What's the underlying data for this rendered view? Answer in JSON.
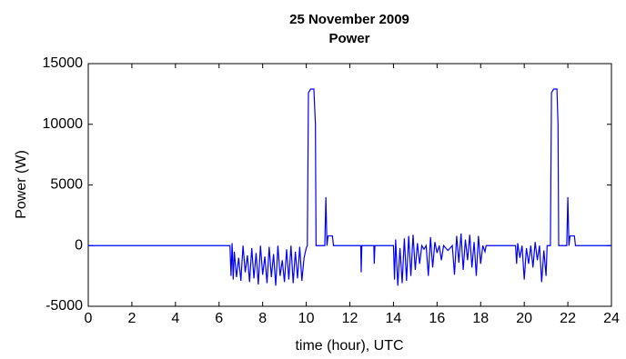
{
  "chart_data": {
    "type": "line",
    "title": "25 November 2009",
    "subtitle": "Power",
    "xlabel": "time (hour), UTC",
    "ylabel": "Power (W)",
    "xlim": [
      0,
      24
    ],
    "xticks": [
      0,
      2,
      4,
      6,
      8,
      10,
      12,
      14,
      16,
      18,
      20,
      22,
      24
    ],
    "ylim": [
      -5000,
      15000
    ],
    "yticks": [
      -5000,
      0,
      5000,
      10000,
      15000
    ],
    "grid": false,
    "series": [
      {
        "color": "#0000ff",
        "x": [
          0,
          6.5,
          6.55,
          6.6,
          6.65,
          6.7,
          6.8,
          6.9,
          7.0,
          7.1,
          7.2,
          7.3,
          7.4,
          7.5,
          7.6,
          7.7,
          7.8,
          7.9,
          8.0,
          8.1,
          8.2,
          8.3,
          8.4,
          8.5,
          8.6,
          8.7,
          8.8,
          8.9,
          9.0,
          9.1,
          9.2,
          9.3,
          9.4,
          9.5,
          9.6,
          9.7,
          9.8,
          9.9,
          10.0,
          10.05,
          10.1,
          10.2,
          10.35,
          10.42,
          10.45,
          10.85,
          10.9,
          10.95,
          11.0,
          11.2,
          11.25,
          12.5,
          12.52,
          12.55,
          13.1,
          13.12,
          13.15,
          14.0,
          14.05,
          14.1,
          14.2,
          14.3,
          14.4,
          14.5,
          14.6,
          14.7,
          14.8,
          14.9,
          15.0,
          15.1,
          15.2,
          15.3,
          15.4,
          15.5,
          15.6,
          15.7,
          15.8,
          15.9,
          16.0,
          16.1,
          16.2,
          16.3,
          16.5,
          16.7,
          16.8,
          16.9,
          17.0,
          17.1,
          17.2,
          17.3,
          17.4,
          17.5,
          17.6,
          17.7,
          17.8,
          17.9,
          18.0,
          18.1,
          18.2,
          18.25,
          19.6,
          19.65,
          19.7,
          19.8,
          19.9,
          20.0,
          20.1,
          20.2,
          20.3,
          20.4,
          20.5,
          20.6,
          20.7,
          20.8,
          20.9,
          21.0,
          21.05,
          21.2,
          21.25,
          21.35,
          21.5,
          21.55,
          21.58,
          21.95,
          22.0,
          22.05,
          22.1,
          22.3,
          22.35,
          24
        ],
        "values": [
          0,
          0,
          -2500,
          200,
          -2800,
          -500,
          -2600,
          -1000,
          -2900,
          0,
          -2200,
          -800,
          -3000,
          -200,
          -2700,
          -600,
          -3200,
          0,
          -2400,
          -900,
          -3100,
          -100,
          -2600,
          -700,
          -3300,
          0,
          -2500,
          -1200,
          -3000,
          -300,
          -2800,
          0,
          -3100,
          -500,
          -2700,
          -100,
          -2900,
          -1000,
          -200,
          0,
          12600,
          12900,
          12900,
          10000,
          0,
          0,
          4000,
          0,
          800,
          800,
          0,
          0,
          -2200,
          0,
          0,
          -1500,
          0,
          0,
          -2800,
          500,
          -3300,
          -200,
          -3100,
          600,
          -2900,
          800,
          -2500,
          900,
          -2000,
          200,
          -1500,
          0,
          -300,
          0,
          -2500,
          700,
          -1800,
          300,
          -600,
          0,
          -1200,
          0,
          -400,
          0,
          -2400,
          800,
          -1400,
          1000,
          -2000,
          500,
          -1200,
          900,
          -1800,
          300,
          -2500,
          800,
          -1500,
          0,
          -500,
          0,
          0,
          -1500,
          200,
          -1000,
          0,
          -2800,
          -200,
          -1500,
          0,
          -1800,
          300,
          -1200,
          0,
          -3000,
          -400,
          -2500,
          0,
          0,
          12600,
          12900,
          12900,
          10000,
          0,
          0,
          4000,
          0,
          800,
          800,
          0,
          0
        ]
      }
    ]
  }
}
